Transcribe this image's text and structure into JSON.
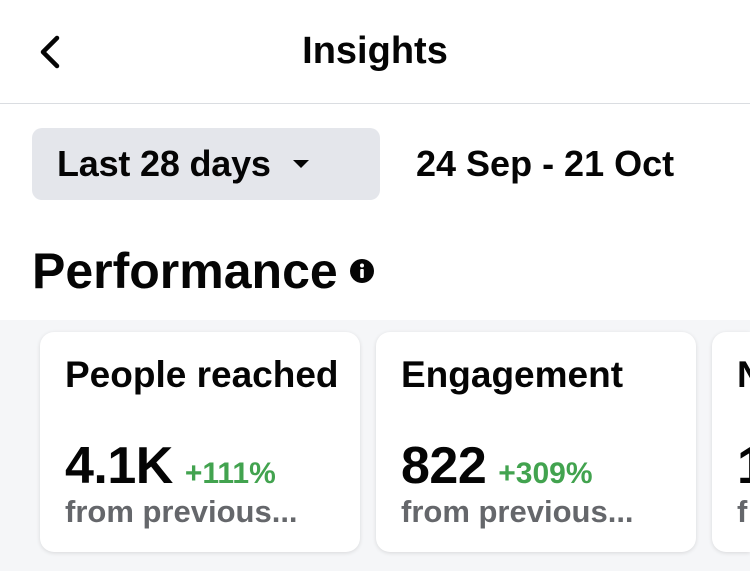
{
  "header": {
    "title": "Insights"
  },
  "filters": {
    "range_label": "Last 28 days",
    "date_range": "24 Sep - 21 Oct"
  },
  "performance": {
    "title": "Performance",
    "cards": [
      {
        "title": "People reached",
        "value": "4.1K",
        "delta": "+111%",
        "sub": "from previous..."
      },
      {
        "title": "Engagement",
        "value": "822",
        "delta": "+309%",
        "sub": "from previous..."
      },
      {
        "title": "N",
        "value": "1",
        "delta": "",
        "sub": "f"
      }
    ]
  },
  "colors": {
    "delta_positive": "#42a34f",
    "card_bg": "#ffffff",
    "chip_bg": "#e4e6eb"
  }
}
